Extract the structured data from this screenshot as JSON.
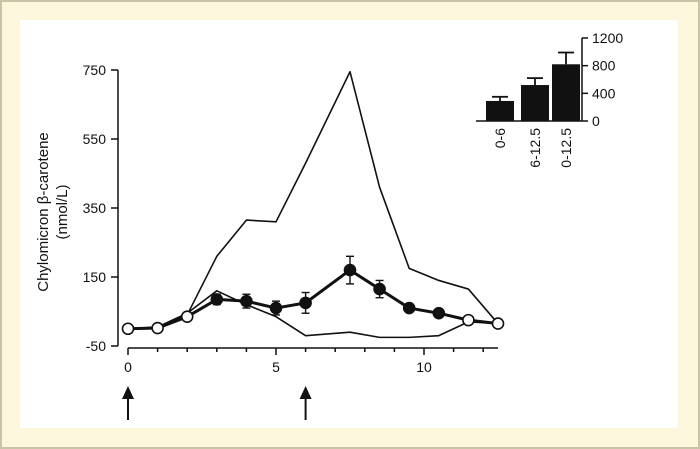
{
  "chart_data": [
    {
      "type": "line",
      "ylabel_lines": [
        "Chylomicron β-carotene",
        "(nmol/L)"
      ],
      "xlabel": "",
      "xlim": [
        0,
        12.5
      ],
      "ylim": [
        -50,
        750
      ],
      "xticks": [
        0,
        5,
        10
      ],
      "yticks": [
        -50,
        150,
        350,
        550,
        750
      ],
      "series": [
        {
          "role": "upper-range",
          "x": [
            0,
            1,
            2,
            3,
            4,
            5,
            6,
            7.5,
            8.5,
            9.5,
            10.5,
            11.5,
            12.5
          ],
          "y": [
            0,
            5,
            40,
            210,
            315,
            310,
            480,
            745,
            410,
            175,
            140,
            115,
            15
          ]
        },
        {
          "role": "lower-range",
          "x": [
            0,
            1,
            2,
            3,
            4,
            5,
            6,
            7.5,
            8.5,
            9.5,
            10.5,
            11.5,
            12.5
          ],
          "y": [
            0,
            5,
            45,
            110,
            70,
            35,
            -20,
            -10,
            -25,
            -25,
            -20,
            20,
            15
          ]
        },
        {
          "role": "mean",
          "x": [
            0,
            1,
            2,
            3,
            4,
            5,
            6,
            7.5,
            8.5,
            9.5,
            10.5,
            11.5,
            12.5
          ],
          "y": [
            0,
            2,
            35,
            85,
            80,
            60,
            75,
            170,
            115,
            60,
            45,
            25,
            15
          ],
          "err": [
            0,
            0,
            0,
            15,
            20,
            20,
            30,
            40,
            25,
            0,
            0,
            0,
            0
          ],
          "filled": [
            false,
            false,
            false,
            true,
            true,
            true,
            true,
            true,
            true,
            true,
            true,
            false,
            false
          ]
        }
      ],
      "arrows_at": [
        0,
        6
      ]
    },
    {
      "type": "bar",
      "categories": [
        "0-6",
        "6-12.5",
        "0-12.5"
      ],
      "values": [
        290,
        520,
        820
      ],
      "errors": [
        60,
        100,
        170
      ],
      "ylim": [
        0,
        1200
      ],
      "yticks": [
        0,
        400,
        800,
        1200
      ]
    }
  ]
}
